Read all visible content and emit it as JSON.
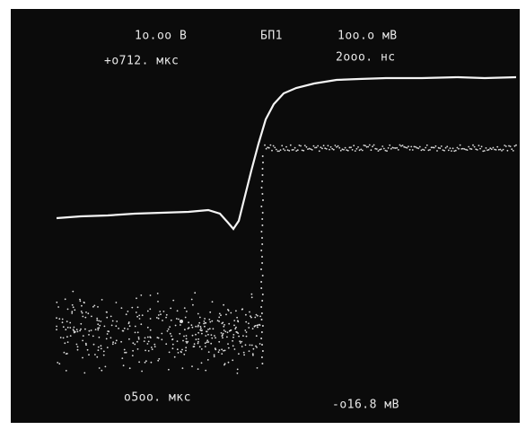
{
  "screen": {
    "top_left": "1о.оо В",
    "top_center": "БП1",
    "top_right": "1оо.о мВ",
    "second_left": "+о712. мкс",
    "second_right": "2ооо. нс",
    "bottom_left": "о5оо. мкс",
    "bottom_right": "-о16.8 мВ"
  }
}
